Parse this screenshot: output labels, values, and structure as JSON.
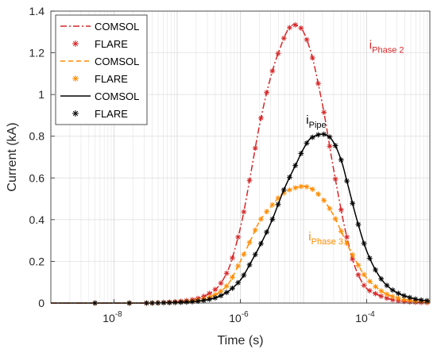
{
  "chart_data": {
    "type": "line",
    "xlabel": "Time (s)",
    "ylabel": "Current (kA)",
    "xscale": "log",
    "xlim": [
      1e-09,
      0.001
    ],
    "ylim": [
      0,
      1.4
    ],
    "xticks": [
      {
        "value": 1e-08,
        "base": "10",
        "exp": "-8"
      },
      {
        "value": 1e-06,
        "base": "10",
        "exp": "-6"
      },
      {
        "value": 0.0001,
        "base": "10",
        "exp": "-4"
      }
    ],
    "yticks": [
      "0",
      "0.2",
      "0.4",
      "0.6",
      "0.8",
      "1",
      "1.2",
      "1.4"
    ],
    "grid": true,
    "legend_position": "top-left",
    "legend": [
      {
        "label": "COMSOL",
        "color": "#d62728",
        "style": "dash-dot"
      },
      {
        "label": "FLARE",
        "color": "#d62728",
        "style": "asterisk"
      },
      {
        "label": "COMSOL",
        "color": "#ff8c00",
        "style": "dashed"
      },
      {
        "label": "FLARE",
        "color": "#ff8c00",
        "style": "asterisk"
      },
      {
        "label": "COMSOL",
        "color": "#000000",
        "style": "solid"
      },
      {
        "label": "FLARE",
        "color": "#000000",
        "style": "asterisk"
      }
    ],
    "series": [
      {
        "color": "#d62728",
        "style": "dash-dot",
        "marker": "asterisk",
        "x": [
          1e-09,
          1e-08,
          3e-08,
          1e-07,
          2e-07,
          4e-07,
          6e-07,
          1e-06,
          1.5e-06,
          2e-06,
          3e-06,
          4e-06,
          6e-06,
          7e-06,
          9e-06,
          1.2e-05,
          2e-05,
          3e-05,
          5e-05,
          7e-05,
          0.0001,
          0.00015,
          0.0002,
          0.0003,
          0.0005,
          0.0007,
          0.001
        ],
        "y": [
          0,
          0,
          0,
          0.007,
          0.02,
          0.065,
          0.14,
          0.36,
          0.64,
          0.85,
          1.08,
          1.2,
          1.32,
          1.335,
          1.32,
          1.24,
          0.95,
          0.64,
          0.3,
          0.15,
          0.07,
          0.04,
          0.025,
          0.012,
          0.005,
          0.003,
          0.002
        ]
      },
      {
        "color": "#ff8c00",
        "style": "dashed",
        "marker": "asterisk",
        "x": [
          1e-09,
          1e-08,
          3e-08,
          1e-07,
          2e-07,
          4e-07,
          6e-07,
          1e-06,
          1.5e-06,
          2e-06,
          3e-06,
          5e-06,
          8e-06,
          1e-05,
          1.3e-05,
          2e-05,
          3e-05,
          4e-05,
          6e-05,
          0.0001,
          0.00015,
          0.0002,
          0.0003,
          0.0005,
          0.0007,
          0.001
        ],
        "y": [
          0,
          0,
          0,
          0.004,
          0.012,
          0.04,
          0.08,
          0.2,
          0.31,
          0.39,
          0.46,
          0.53,
          0.555,
          0.56,
          0.55,
          0.5,
          0.42,
          0.34,
          0.23,
          0.12,
          0.07,
          0.045,
          0.025,
          0.012,
          0.008,
          0.005
        ]
      },
      {
        "color": "#000000",
        "style": "solid",
        "marker": "asterisk",
        "x": [
          1e-09,
          1e-08,
          3e-08,
          1e-07,
          2e-07,
          4e-07,
          6e-07,
          1e-06,
          1.5e-06,
          2e-06,
          3e-06,
          5e-06,
          8e-06,
          1e-05,
          1.3e-05,
          2e-05,
          2.5e-05,
          3e-05,
          4e-05,
          5e-05,
          7e-05,
          0.0001,
          0.00015,
          0.0002,
          0.0003,
          0.0005,
          0.0007,
          0.001
        ],
        "y": [
          0,
          0,
          0,
          0.003,
          0.008,
          0.025,
          0.05,
          0.11,
          0.2,
          0.27,
          0.38,
          0.55,
          0.68,
          0.74,
          0.79,
          0.81,
          0.8,
          0.77,
          0.68,
          0.57,
          0.4,
          0.25,
          0.14,
          0.09,
          0.05,
          0.025,
          0.015,
          0.01
        ]
      }
    ],
    "annotations": [
      {
        "main": "i",
        "sub": "Phase 2",
        "color": "#d62728",
        "x": 0.00011,
        "y": 1.22
      },
      {
        "main": "i",
        "sub": "Pipe",
        "color": "#000000",
        "x": 1.1e-05,
        "y": 0.86
      },
      {
        "main": "i",
        "sub": "Phase 3",
        "color": "#ff8c00",
        "x": 1.2e-05,
        "y": 0.3
      }
    ]
  }
}
